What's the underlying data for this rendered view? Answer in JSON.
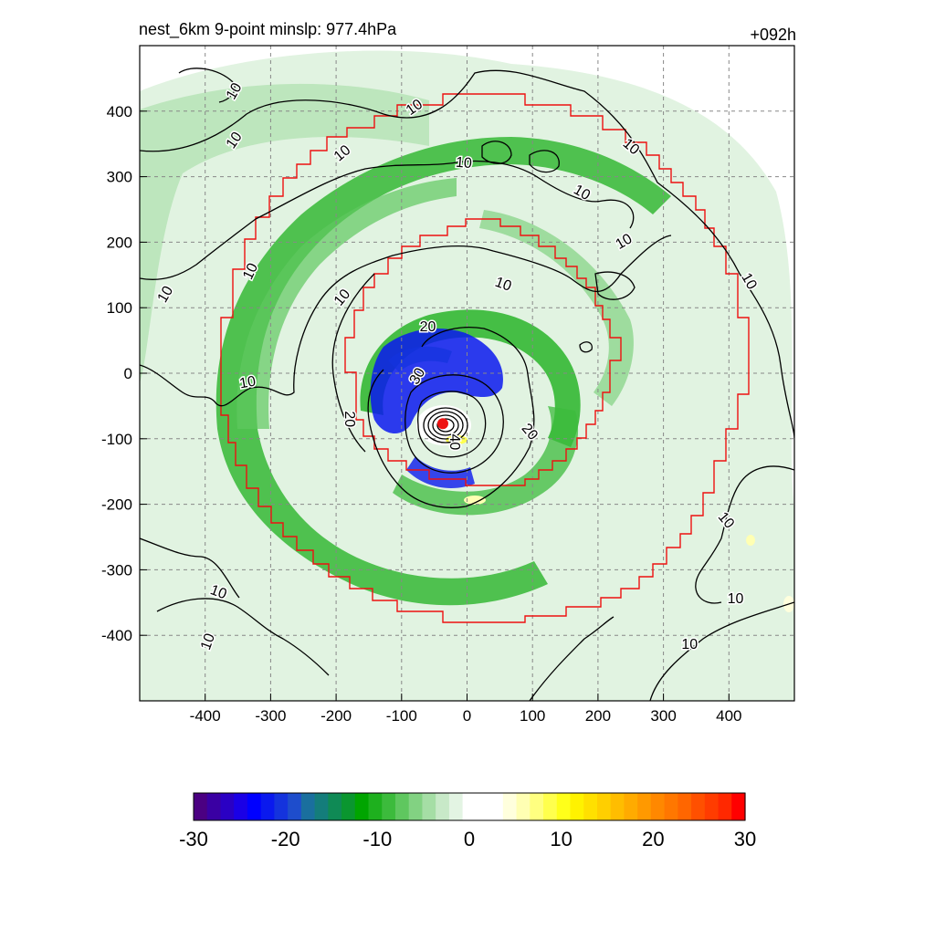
{
  "header": {
    "title_left": "nest_6km  9-point minslp: 977.4hPa",
    "title_right": "+092h"
  },
  "colors": {
    "grid": "#888888",
    "contour": "#000000",
    "nest_boundary": "#ee1111",
    "center_marker": "#ee1111"
  },
  "chart_data": {
    "type": "heatmap",
    "title": "nest_6km  9-point minslp: 977.4hPa",
    "subtitle": "+092h",
    "xlabel": "",
    "ylabel": "",
    "xlim": [
      -500,
      500
    ],
    "ylim": [
      -500,
      500
    ],
    "x_ticks": [
      -400,
      -300,
      -200,
      -100,
      0,
      100,
      200,
      300,
      400
    ],
    "y_ticks": [
      400,
      300,
      200,
      100,
      0,
      -100,
      -200,
      -300,
      -400
    ],
    "grid": true,
    "storm_center": {
      "x": -37,
      "y": -77
    },
    "min_slp_hPa": 977.4,
    "contour_levels": [
      10,
      20,
      30,
      40
    ],
    "contour_labels": [
      {
        "text": "10",
        "x": -355,
        "y": 430,
        "rot": -60
      },
      {
        "text": "10",
        "x": -355,
        "y": 355,
        "rot": -55
      },
      {
        "text": "10",
        "x": -460,
        "y": 120,
        "rot": -60
      },
      {
        "text": "10",
        "x": -330,
        "y": 155,
        "rot": -65
      },
      {
        "text": "10",
        "x": -190,
        "y": 115,
        "rot": -50
      },
      {
        "text": "10",
        "x": -335,
        "y": -15,
        "rot": -10
      },
      {
        "text": "10",
        "x": -190,
        "y": 335,
        "rot": -40
      },
      {
        "text": "10",
        "x": -80,
        "y": 405,
        "rot": -35
      },
      {
        "text": "10",
        "x": -5,
        "y": 320,
        "rot": 5
      },
      {
        "text": "10",
        "x": 175,
        "y": 275,
        "rot": 30
      },
      {
        "text": "10",
        "x": 250,
        "y": 345,
        "rot": 40
      },
      {
        "text": "10",
        "x": 240,
        "y": 200,
        "rot": -30
      },
      {
        "text": "10",
        "x": 430,
        "y": 140,
        "rot": 60
      },
      {
        "text": "10",
        "x": 55,
        "y": 135,
        "rot": 20
      },
      {
        "text": "10",
        "x": -380,
        "y": -335,
        "rot": 20
      },
      {
        "text": "10",
        "x": -395,
        "y": -410,
        "rot": -70
      },
      {
        "text": "10",
        "x": 410,
        "y": -345,
        "rot": 0
      },
      {
        "text": "10",
        "x": 340,
        "y": -415,
        "rot": 0
      },
      {
        "text": "10",
        "x": 395,
        "y": -225,
        "rot": 50
      },
      {
        "text": "20",
        "x": -60,
        "y": 70,
        "rot": 0
      },
      {
        "text": "20",
        "x": -180,
        "y": -70,
        "rot": 90
      },
      {
        "text": "20",
        "x": 95,
        "y": -90,
        "rot": 50
      },
      {
        "text": "30",
        "x": -75,
        "y": -5,
        "rot": -60
      },
      {
        "text": "40",
        "x": -20,
        "y": -105,
        "rot": 90
      }
    ],
    "colorbar": {
      "min": -30,
      "max": 30,
      "ticks": [
        -30,
        -20,
        -10,
        0,
        10,
        20,
        30
      ],
      "tick_labels": [
        "-30",
        "-20",
        "-10",
        "0",
        "10",
        "20",
        "30"
      ],
      "colors": [
        "#4b0082",
        "#3a00a3",
        "#2a00c4",
        "#1a00e6",
        "#0000ff",
        "#0a19ee",
        "#1433dd",
        "#1e4dcc",
        "#1a6f9e",
        "#147d7b",
        "#0f8a55",
        "#0a962f",
        "#00a500",
        "#1eb01e",
        "#3cbb3c",
        "#5fc75f",
        "#82d282",
        "#a5dea5",
        "#c8e9c8",
        "#e3f4e3",
        "#ffffff",
        "#ffffff",
        "#ffffff",
        "#ffffdd",
        "#ffffb3",
        "#ffff80",
        "#ffff4d",
        "#ffff1a",
        "#fff200",
        "#ffe000",
        "#ffcf00",
        "#ffbd00",
        "#ffab00",
        "#ff9900",
        "#ff8800",
        "#ff7700",
        "#ff6600",
        "#ff5000",
        "#ff3c00",
        "#ff2800",
        "#ff0000"
      ]
    }
  }
}
